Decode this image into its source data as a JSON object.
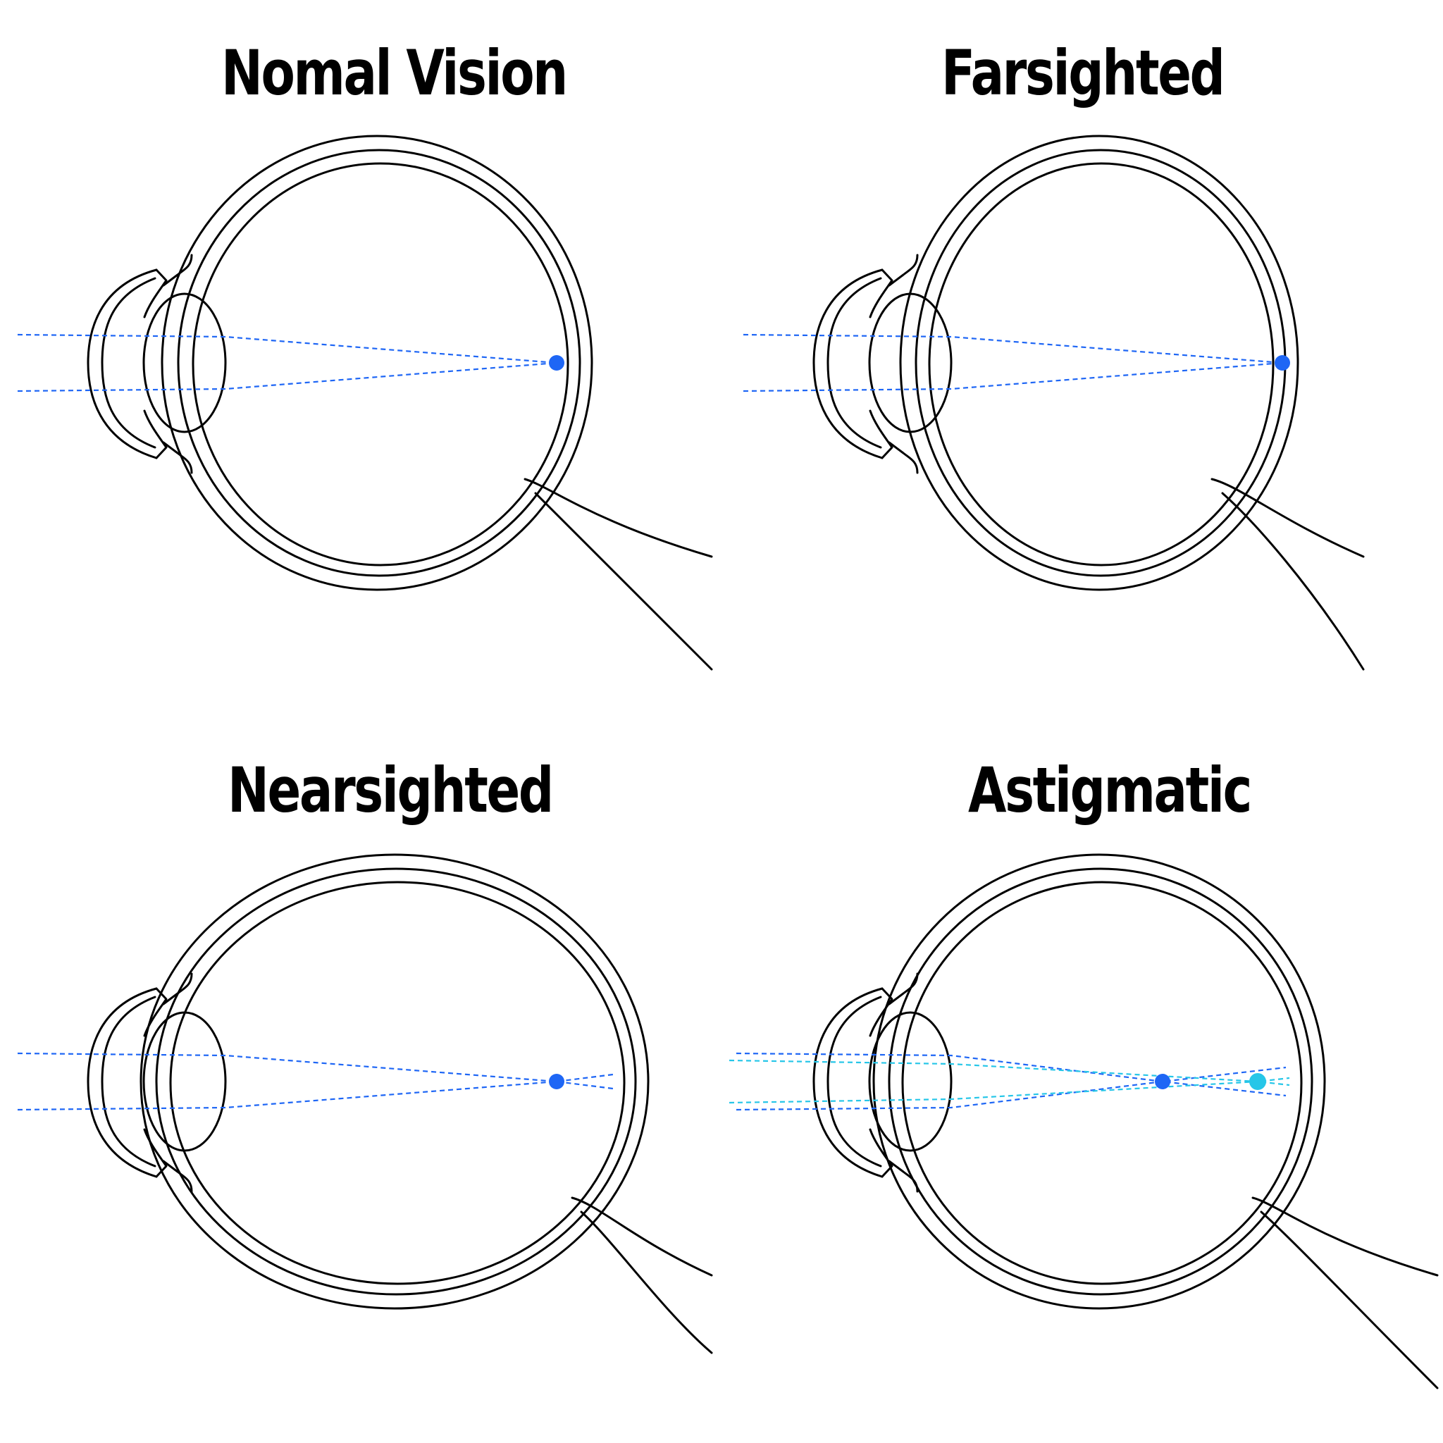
{
  "colors": {
    "focus": "#1e66f5",
    "focus_secondary": "#26c6e8",
    "outline": "#000000"
  },
  "panels": [
    {
      "title": "Nomal Vision",
      "eye": "normal"
    },
    {
      "title": "Farsighted",
      "eye": "farsighted"
    },
    {
      "title": "Nearsighted",
      "eye": "nearsighted"
    },
    {
      "title": "Astigmatic",
      "eye": "astigmatic"
    }
  ]
}
